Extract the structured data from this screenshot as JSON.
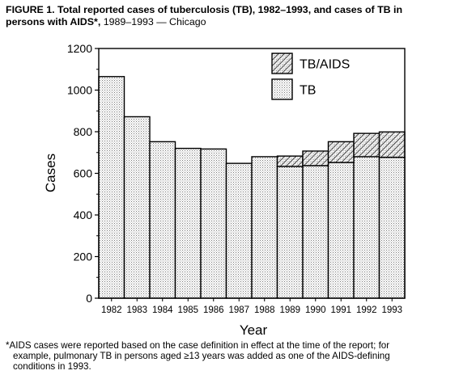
{
  "figure": {
    "title_lead": "FIGURE 1.",
    "title_line1": "Total reported cases of tuberculosis (TB), 1982–1993, and cases of TB in",
    "title_line2_bold": "persons with AIDS*,",
    "title_line2_rest": "1989–1993 — Chicago",
    "footnote_line1": "*AIDS cases were reported based on the case definition in effect at the time of the report; for",
    "footnote_line2": "example, pulmonary TB in persons aged ≥13 years was added as one of the AIDS-defining",
    "footnote_line3": "conditions in 1993."
  },
  "chart_data": {
    "type": "bar",
    "stacked": true,
    "xlabel": "Year",
    "ylabel": "Cases",
    "ylim": [
      0,
      1200
    ],
    "yticks": [
      0,
      200,
      400,
      600,
      800,
      1000,
      1200
    ],
    "categories": [
      "1982",
      "1983",
      "1984",
      "1985",
      "1986",
      "1987",
      "1988",
      "1989",
      "1990",
      "1991",
      "1992",
      "1993"
    ],
    "series": [
      {
        "name": "TB",
        "pattern": "dots",
        "values": [
          1065,
          872,
          752,
          720,
          717,
          648,
          680,
          633,
          637,
          652,
          680,
          677
        ]
      },
      {
        "name": "TB/AIDS",
        "pattern": "hatch",
        "values": [
          0,
          0,
          0,
          0,
          0,
          0,
          0,
          50,
          70,
          100,
          112,
          122
        ]
      }
    ],
    "legend": {
      "position": "top-right",
      "order": [
        "TB/AIDS",
        "TB"
      ]
    },
    "grid": false
  }
}
